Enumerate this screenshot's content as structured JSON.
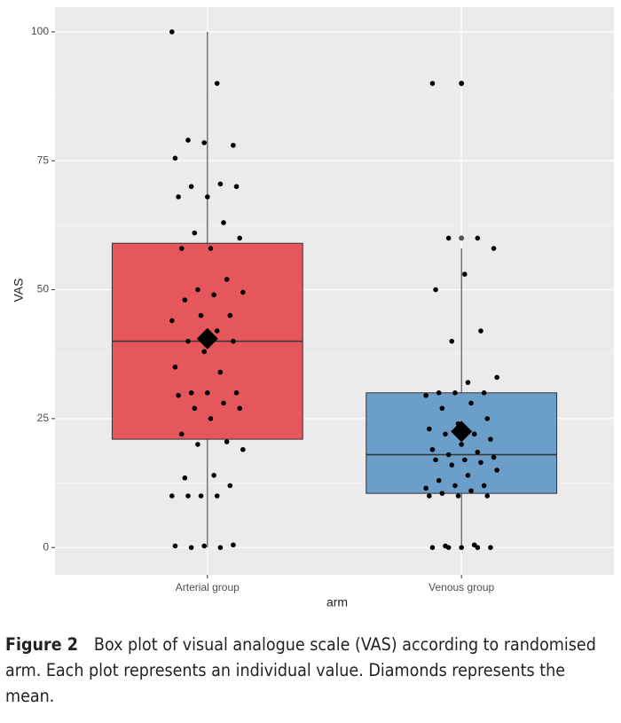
{
  "chart_data": {
    "type": "boxplot",
    "x_label": "arm",
    "y_label": "VAS",
    "categories": [
      "Arterial group",
      "Venous group"
    ],
    "ylim": [
      -5.3,
      104.8
    ],
    "yticks": [
      0,
      25,
      50,
      75,
      100
    ],
    "grid": true,
    "minor_grid": true,
    "boxes": [
      {
        "color": "#e5575b",
        "low": 0,
        "q1": 21,
        "median": 40,
        "q3": 59,
        "high": 100,
        "mean": 40.5,
        "outliers": [],
        "points": [
          100,
          90,
          79,
          78,
          78.5,
          75.5,
          70.5,
          70,
          70,
          68,
          68,
          63,
          61,
          60,
          58,
          58,
          52,
          50,
          49.5,
          49,
          48,
          45,
          45,
          44,
          42,
          40,
          40,
          38,
          35,
          34,
          30,
          30,
          30,
          29.5,
          28,
          27,
          27,
          25,
          22,
          20.5,
          20,
          19,
          14,
          13.5,
          12,
          10,
          10,
          10,
          10,
          0.5,
          0.3,
          0.3,
          0,
          0
        ]
      },
      {
        "color": "#6b9ec8",
        "low": 0,
        "q1": 10.5,
        "median": 18,
        "q3": 30,
        "high": 58,
        "mean": 22.5,
        "outliers": [
          60,
          90
        ],
        "points": [
          90,
          90,
          60,
          60,
          58,
          53,
          50,
          42,
          40,
          33,
          32,
          30,
          30,
          30,
          29.5,
          28,
          27,
          25,
          24,
          23,
          22,
          22,
          21,
          20,
          19,
          18.5,
          18,
          17.5,
          17,
          17,
          16.5,
          16,
          15,
          14,
          13,
          12,
          12,
          11.5,
          11,
          10.5,
          10,
          10,
          10,
          0.5,
          0.3,
          0,
          0,
          0,
          0,
          0
        ]
      }
    ]
  },
  "caption": {
    "label": "Figure 2",
    "text": "Box plot of visual analogue scale (VAS) according to randomised arm. Each plot represents an individual value. Diamonds represents the mean."
  }
}
